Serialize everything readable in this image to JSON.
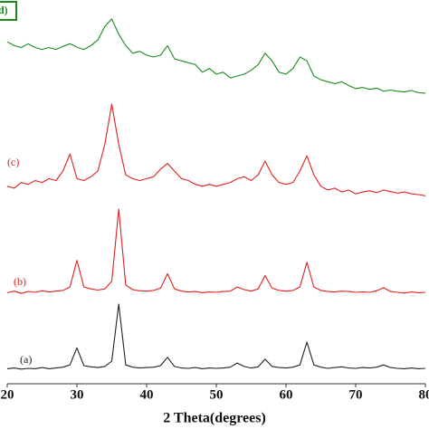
{
  "chart_data": {
    "type": "line",
    "xlabel": "2 Theta(degrees)",
    "xlim": [
      20,
      80
    ],
    "xticks": [
      20,
      30,
      40,
      50,
      60,
      70,
      80
    ],
    "ylim": [
      0,
      100
    ],
    "x": [
      20,
      21,
      22,
      23,
      24,
      25,
      26,
      27,
      28,
      29,
      30,
      31,
      32,
      33,
      34,
      35,
      36,
      37,
      38,
      39,
      40,
      41,
      42,
      43,
      44,
      45,
      46,
      47,
      48,
      49,
      50,
      51,
      52,
      53,
      54,
      55,
      56,
      57,
      58,
      59,
      60,
      61,
      62,
      63,
      64,
      65,
      66,
      67,
      68,
      69,
      70,
      71,
      72,
      73,
      74,
      75,
      76,
      77,
      78,
      79,
      80
    ],
    "series": [
      {
        "name": "(a)",
        "color": "#222222",
        "values": [
          3,
          3.2,
          2.9,
          3.1,
          3,
          3.3,
          3,
          3.2,
          3.4,
          4,
          8.5,
          3.8,
          3.5,
          3.3,
          3.6,
          5,
          20,
          4,
          3.4,
          3.2,
          3.3,
          3.4,
          3.8,
          6,
          3.6,
          3.2,
          3.1,
          3.3,
          3,
          3.2,
          3.1,
          3.2,
          3.4,
          4.5,
          3.6,
          3.2,
          3.5,
          5.5,
          3.6,
          3.3,
          3.2,
          3.4,
          4,
          10,
          4,
          3.4,
          3.1,
          3.3,
          3.5,
          3.2,
          3.1,
          3.3,
          3.2,
          3.4,
          4,
          3.3,
          3.1,
          3,
          3.2,
          3,
          3.1
        ]
      },
      {
        "name": "(b)",
        "color": "#e02020",
        "values": [
          23,
          23.4,
          22.8,
          23.3,
          23.1,
          23.5,
          23.2,
          23.4,
          23.6,
          24.5,
          31.5,
          24.5,
          24,
          23.7,
          24,
          26,
          45,
          25,
          23.8,
          23.5,
          23.4,
          23.6,
          24.2,
          28,
          24,
          23.4,
          23.2,
          23.3,
          23,
          23.2,
          23.1,
          23.3,
          23.4,
          24.5,
          23.8,
          23.4,
          24,
          27.5,
          24.2,
          23.6,
          23.4,
          23.6,
          24.5,
          31,
          24.5,
          23.6,
          23.3,
          23.2,
          23.4,
          23.3,
          23.1,
          23.2,
          23.1,
          23.5,
          24.3,
          23.3,
          23.1,
          22.9,
          23.2,
          23,
          23.1
        ]
      },
      {
        "name": "(c)",
        "color": "#e02020",
        "values": [
          51,
          50.5,
          52,
          51.5,
          52.5,
          52,
          53,
          52.5,
          55,
          59.5,
          53,
          52.5,
          53.5,
          55,
          62,
          72.6,
          62,
          54,
          53,
          52.5,
          53,
          53.5,
          55.5,
          57,
          55,
          53,
          52.5,
          51.5,
          51,
          51.5,
          51,
          51.5,
          52,
          53,
          53.5,
          52.5,
          54,
          57.6,
          54,
          52,
          51.5,
          52,
          55,
          59,
          54,
          51,
          50,
          50.5,
          49.5,
          50,
          49,
          49.5,
          49.8,
          49.3,
          50,
          49.6,
          49.2,
          49.5,
          49,
          48.8,
          48.5
        ]
      },
      {
        "name": "(d)",
        "color": "#1a8a1a",
        "values": [
          89,
          88,
          87.5,
          88.5,
          87.5,
          87,
          87.5,
          87,
          87.8,
          88.5,
          87.6,
          87,
          88,
          89.5,
          93,
          95,
          91,
          88,
          86,
          86.5,
          85.5,
          85,
          85.5,
          88,
          84.5,
          84,
          83.5,
          83,
          81,
          82,
          80.5,
          81,
          79.5,
          80,
          80.5,
          81.5,
          83,
          86,
          84,
          81,
          80.5,
          82,
          85,
          84,
          80,
          79,
          78.5,
          78,
          78.5,
          77.5,
          76.7,
          77,
          76.5,
          76.8,
          76,
          76.3,
          76,
          75.8,
          76.2,
          75.6,
          75.5
        ]
      }
    ]
  }
}
